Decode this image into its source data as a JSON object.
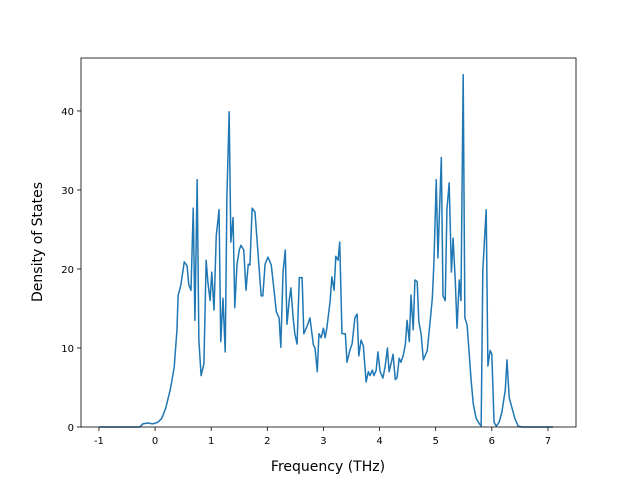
{
  "chart_data": {
    "type": "line",
    "x_label": "Frequency (THz)",
    "y_label": "Density of States",
    "xlim": [
      -1.32,
      7.5
    ],
    "ylim": [
      0,
      46.7
    ],
    "xticks": [
      -1,
      0,
      1,
      2,
      3,
      4,
      5,
      6,
      7
    ],
    "yticks": [
      0,
      10,
      20,
      30,
      40
    ],
    "grid": false,
    "color": "#1f77b4",
    "x": [
      -1,
      -0.27,
      -0.22,
      -0.13,
      -0.04,
      0.05,
      0.12,
      0.19,
      0.27,
      0.34,
      0.39,
      0.41,
      0.46,
      0.52,
      0.57,
      0.6,
      0.64,
      0.68,
      0.71,
      0.75,
      0.78,
      0.82,
      0.87,
      0.91,
      0.94,
      0.98,
      1.01,
      1.05,
      1.09,
      1.14,
      1.17,
      1.21,
      1.25,
      1.28,
      1.32,
      1.35,
      1.39,
      1.42,
      1.46,
      1.5,
      1.53,
      1.58,
      1.62,
      1.66,
      1.69,
      1.73,
      1.78,
      1.83,
      1.89,
      1.92,
      1.96,
      2.01,
      2.07,
      2.12,
      2.16,
      2.21,
      2.24,
      2.28,
      2.32,
      2.35,
      2.39,
      2.42,
      2.46,
      2.49,
      2.53,
      2.57,
      2.62,
      2.65,
      2.71,
      2.76,
      2.82,
      2.85,
      2.89,
      2.92,
      2.96,
      3,
      3.03,
      3.06,
      3.12,
      3.15,
      3.19,
      3.22,
      3.26,
      3.29,
      3.33,
      3.39,
      3.42,
      3.47,
      3.51,
      3.56,
      3.6,
      3.63,
      3.67,
      3.71,
      3.76,
      3.8,
      3.83,
      3.87,
      3.9,
      3.94,
      3.97,
      4.01,
      4.06,
      4.1,
      4.14,
      4.17,
      4.21,
      4.24,
      4.28,
      4.31,
      4.35,
      4.38,
      4.42,
      4.46,
      4.49,
      4.53,
      4.56,
      4.6,
      4.63,
      4.67,
      4.7,
      4.74,
      4.78,
      4.81,
      4.85,
      4.9,
      4.94,
      4.97,
      5.01,
      5.04,
      5.1,
      5.13,
      5.17,
      5.2,
      5.24,
      5.28,
      5.31,
      5.35,
      5.38,
      5.42,
      5.45,
      5.49,
      5.52,
      5.56,
      5.6,
      5.63,
      5.67,
      5.72,
      5.77,
      5.81,
      5.84,
      5.9,
      5.93,
      5.97,
      6,
      6.04,
      6.08,
      6.13,
      6.18,
      6.24,
      6.27,
      6.31,
      6.36,
      6.41,
      6.47,
      6.54,
      7,
      7.09
    ],
    "values": [
      0,
      0,
      0.4,
      0.5,
      0.4,
      0.6,
      1.1,
      2.4,
      4.7,
      7.5,
      12.3,
      16.6,
      18,
      20.9,
      20.4,
      18,
      17.3,
      27.7,
      13.5,
      31.3,
      11,
      6.5,
      8,
      21.1,
      18.4,
      16,
      19.6,
      14.8,
      24.2,
      27.5,
      10.8,
      16.3,
      9.5,
      29.2,
      39.9,
      23.4,
      26.5,
      15.1,
      20.6,
      22.4,
      23,
      22.4,
      17.3,
      20.6,
      20.5,
      27.7,
      27.2,
      22.4,
      16.6,
      16.6,
      20.6,
      21.5,
      20.5,
      17.3,
      14.6,
      13.8,
      10.1,
      19.6,
      22.4,
      13,
      16,
      17.6,
      13.8,
      11.8,
      10.5,
      18.9,
      18.9,
      11.8,
      12.8,
      13.8,
      10.4,
      10,
      7,
      11.8,
      11.3,
      12.5,
      11.3,
      12.5,
      16,
      19,
      17.3,
      21.6,
      21.1,
      23.4,
      11.8,
      11.8,
      8.2,
      9.7,
      10.5,
      13.8,
      14.3,
      9,
      11,
      10.3,
      5.7,
      7,
      6.5,
      7.2,
      6.5,
      7.2,
      9.5,
      7,
      6.2,
      7.7,
      10,
      7,
      8.2,
      9.2,
      6,
      6.2,
      8.7,
      8.2,
      9,
      10.5,
      13.5,
      10.8,
      16.7,
      12.3,
      18.6,
      18.4,
      13.3,
      11.8,
      8.5,
      9,
      9.7,
      13.3,
      16.3,
      21.1,
      31.3,
      21.4,
      34.1,
      16.6,
      16,
      27.5,
      30.9,
      19.6,
      23.9,
      18.4,
      12.5,
      18.6,
      16,
      44.6,
      13.8,
      12.9,
      9,
      6,
      2.9,
      1.1,
      0.5,
      0.1,
      19.9,
      27.5,
      7.7,
      9.7,
      9.2,
      0.6,
      0.1,
      0.6,
      1.9,
      4.7,
      8.5,
      3.7,
      2.4,
      1.1,
      0.1,
      0,
      0,
      0
    ]
  }
}
